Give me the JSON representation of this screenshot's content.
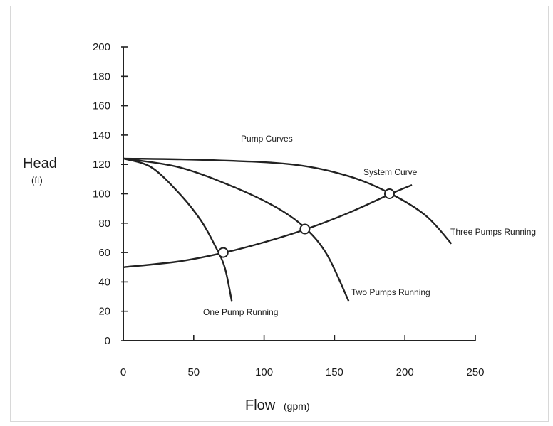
{
  "chart_data": {
    "type": "line",
    "title": "",
    "xlabel": "Flow",
    "xlabel_unit": "(gpm)",
    "ylabel": "Head",
    "ylabel_unit": "(ft)",
    "xlim": [
      0,
      250
    ],
    "ylim": [
      0,
      200
    ],
    "xticks": [
      "0",
      "50",
      "100",
      "150",
      "200",
      "250"
    ],
    "yticks": [
      "0",
      "20",
      "40",
      "60",
      "80",
      "100",
      "120",
      "140",
      "160",
      "180",
      "200"
    ],
    "grid": false,
    "group_label": "Pump Curves",
    "series": [
      {
        "name": "One Pump Running",
        "x": [
          0,
          20,
          40,
          55,
          65,
          72,
          77
        ],
        "y": [
          124,
          118,
          100,
          82,
          65,
          50,
          27
        ]
      },
      {
        "name": "Two Pumps Running",
        "x": [
          0,
          40,
          80,
          110,
          130,
          145,
          160
        ],
        "y": [
          124,
          118,
          104,
          90,
          76,
          58,
          27
        ]
      },
      {
        "name": "Three Pumps Running",
        "x": [
          0,
          60,
          120,
          160,
          190,
          215,
          233
        ],
        "y": [
          124,
          123,
          120,
          112,
          100,
          85,
          66
        ]
      },
      {
        "name": "System Curve",
        "x": [
          0,
          40,
          72,
          100,
          130,
          160,
          190,
          205
        ],
        "y": [
          50,
          54,
          60,
          67,
          76,
          87,
          100,
          106
        ]
      }
    ],
    "operating_points": [
      {
        "x": 71,
        "y": 60
      },
      {
        "x": 129,
        "y": 76
      },
      {
        "x": 189,
        "y": 100
      }
    ]
  }
}
